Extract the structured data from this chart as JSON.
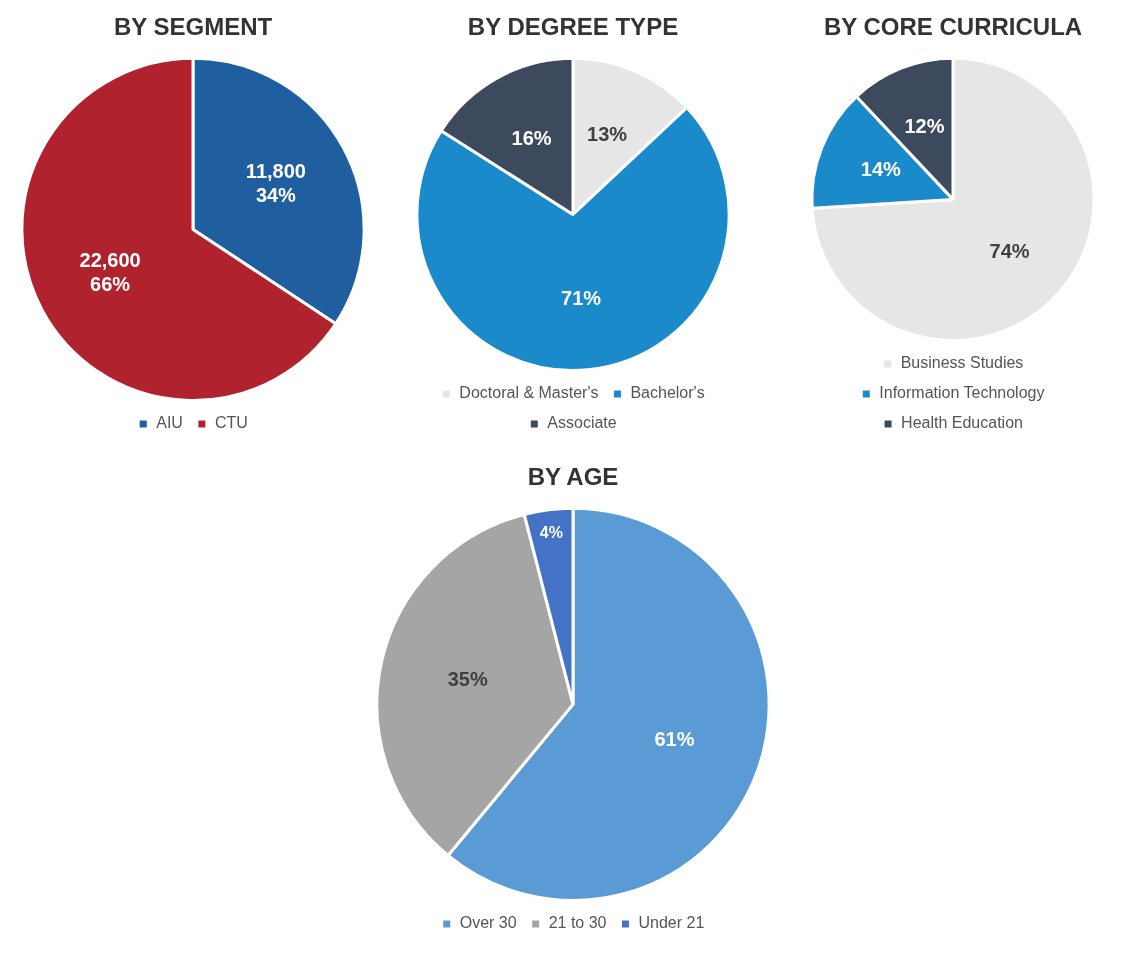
{
  "chart_data": [
    {
      "type": "pie",
      "title": "BY SEGMENT",
      "categories": [
        "AIU",
        "CTU"
      ],
      "values": [
        11800,
        22600
      ],
      "colors": [
        "#1f5fa0",
        "#b0222e"
      ],
      "value_labels": [
        "11,800\n34%",
        "22,600\n66%"
      ],
      "legend": "bottom"
    },
    {
      "type": "pie",
      "title": "BY DEGREE TYPE",
      "categories": [
        "Doctoral & Master's",
        "Bachelor's",
        "Associate"
      ],
      "values": [
        13,
        71,
        16
      ],
      "colors": [
        "#e6e6e6",
        "#1b8acb",
        "#3d4a5e"
      ],
      "value_labels": [
        "13%",
        "71%",
        "16%"
      ],
      "legend": "bottom"
    },
    {
      "type": "pie",
      "title": "BY CORE CURRICULA",
      "categories": [
        "Business Studies",
        "Information Technology",
        "Health Education"
      ],
      "values": [
        74,
        14,
        12
      ],
      "colors": [
        "#e6e6e6",
        "#1b8acb",
        "#3d4a5e"
      ],
      "value_labels": [
        "74%",
        "14%",
        "12%"
      ],
      "legend": "bottom"
    },
    {
      "type": "pie",
      "title": "BY AGE",
      "categories": [
        "Over 30",
        "21 to 30",
        "Under 21"
      ],
      "values": [
        61,
        35,
        4
      ],
      "colors": [
        "#5b9bd5",
        "#a5a5a5",
        "#4472c4"
      ],
      "value_labels": [
        "61%",
        "35%",
        "4%"
      ],
      "legend": "bottom"
    }
  ]
}
